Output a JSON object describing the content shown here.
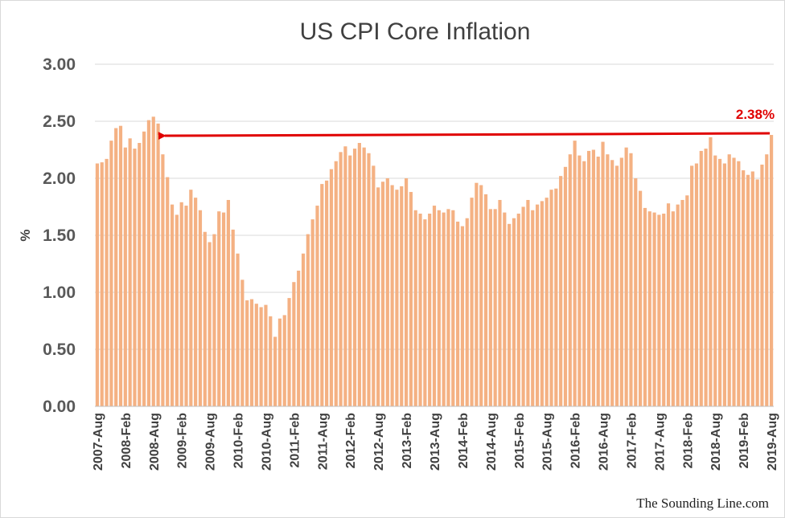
{
  "chart_data": {
    "type": "bar",
    "title": "US CPI Core Inflation",
    "ylabel": "%",
    "xlabel": "",
    "ylim": [
      0,
      3
    ],
    "yticks": [
      "0.00",
      "0.50",
      "1.00",
      "1.50",
      "2.00",
      "2.50",
      "3.00"
    ],
    "grid": true,
    "legend": "none",
    "bar_color": "#f4b183",
    "start": "2007-Aug",
    "end": "2019-Aug",
    "xtick_labels": [
      "2007-Aug",
      "2008-Feb",
      "2008-Aug",
      "2009-Feb",
      "2009-Aug",
      "2010-Feb",
      "2010-Aug",
      "2011-Feb",
      "2011-Aug",
      "2012-Feb",
      "2012-Aug",
      "2013-Feb",
      "2013-Aug",
      "2014-Feb",
      "2014-Aug",
      "2015-Feb",
      "2015-Aug",
      "2016-Feb",
      "2016-Aug",
      "2017-Feb",
      "2017-Aug",
      "2018-Feb",
      "2018-Aug",
      "2019-Feb",
      "2019-Aug"
    ],
    "values": [
      2.13,
      2.14,
      2.17,
      2.33,
      2.44,
      2.46,
      2.27,
      2.35,
      2.26,
      2.31,
      2.41,
      2.51,
      2.54,
      2.48,
      2.21,
      2.01,
      1.77,
      1.68,
      1.79,
      1.76,
      1.9,
      1.83,
      1.72,
      1.53,
      1.44,
      1.51,
      1.71,
      1.7,
      1.81,
      1.55,
      1.34,
      1.11,
      0.93,
      0.94,
      0.9,
      0.87,
      0.89,
      0.79,
      0.61,
      0.77,
      0.8,
      0.95,
      1.09,
      1.19,
      1.34,
      1.51,
      1.64,
      1.76,
      1.95,
      1.98,
      2.08,
      2.15,
      2.23,
      2.28,
      2.2,
      2.26,
      2.31,
      2.27,
      2.22,
      2.11,
      1.92,
      1.97,
      2.0,
      1.94,
      1.9,
      1.93,
      2.0,
      1.88,
      1.72,
      1.69,
      1.64,
      1.69,
      1.76,
      1.72,
      1.7,
      1.73,
      1.72,
      1.62,
      1.58,
      1.65,
      1.83,
      1.96,
      1.94,
      1.86,
      1.73,
      1.73,
      1.81,
      1.7,
      1.6,
      1.65,
      1.69,
      1.75,
      1.81,
      1.72,
      1.77,
      1.8,
      1.83,
      1.9,
      1.91,
      2.02,
      2.1,
      2.21,
      2.33,
      2.2,
      2.15,
      2.24,
      2.25,
      2.19,
      2.32,
      2.21,
      2.16,
      2.11,
      2.18,
      2.27,
      2.22,
      2.0,
      1.89,
      1.74,
      1.71,
      1.7,
      1.68,
      1.69,
      1.78,
      1.71,
      1.77,
      1.81,
      1.85,
      2.11,
      2.13,
      2.24,
      2.26,
      2.36,
      2.2,
      2.17,
      2.13,
      2.21,
      2.18,
      2.15,
      2.07,
      2.03,
      2.06,
      1.99,
      2.12,
      2.21,
      2.38
    ],
    "annotation": {
      "label": "2.38%",
      "value": 2.38,
      "from": "2019-Aug",
      "to": "2008-Aug"
    }
  },
  "credit": "The Sounding Line.com"
}
